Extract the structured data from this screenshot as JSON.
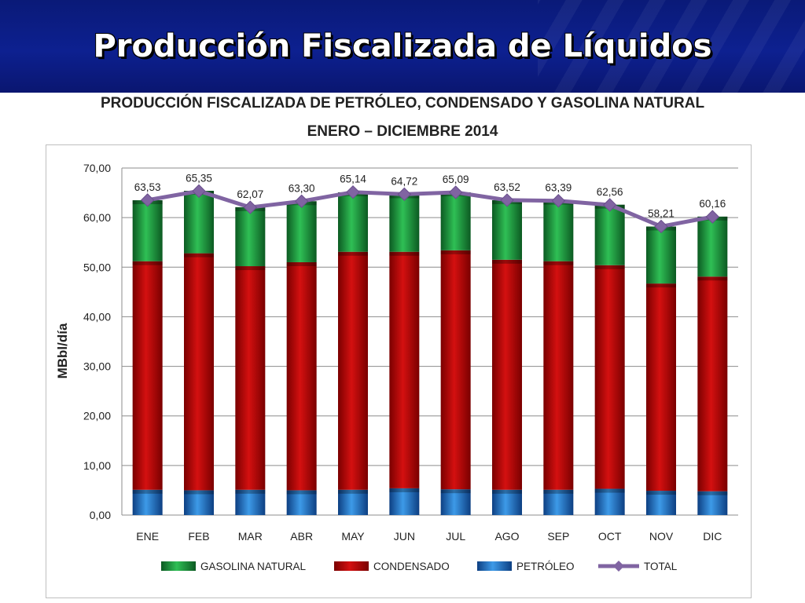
{
  "slide": {
    "title": "Producción Fiscalizada de Líquidos"
  },
  "chart_data": {
    "type": "bar",
    "stacked": true,
    "title": "PRODUCCIÓN FISCALIZADA DE PETRÓLEO, CONDENSADO Y GASOLINA NATURAL",
    "subtitle": "ENERO – DICIEMBRE 2014",
    "xlabel": "",
    "ylabel": "MBbl/día",
    "ylim": [
      0,
      70
    ],
    "yticks": [
      "0,00",
      "10,00",
      "20,00",
      "30,00",
      "40,00",
      "50,00",
      "60,00",
      "70,00"
    ],
    "grid": true,
    "legend_position": "bottom",
    "categories": [
      "ENE",
      "FEB",
      "MAR",
      "ABR",
      "MAY",
      "JUN",
      "JUL",
      "AGO",
      "SEP",
      "OCT",
      "NOV",
      "DIC"
    ],
    "series": [
      {
        "name": "PETRÓLEO",
        "kind": "bar",
        "color": "#1f6fc5",
        "values": [
          5.1,
          5.0,
          5.1,
          5.0,
          5.1,
          5.4,
          5.2,
          5.1,
          5.1,
          5.3,
          4.9,
          4.8
        ]
      },
      {
        "name": "CONDENSADO",
        "kind": "bar",
        "color": "#c40000",
        "values": [
          46.1,
          47.8,
          45.1,
          46.0,
          48.0,
          47.7,
          48.2,
          46.4,
          46.1,
          45.1,
          41.8,
          43.3
        ]
      },
      {
        "name": "GASOLINA NATURAL",
        "kind": "bar",
        "color": "#1e9a3c",
        "values": [
          12.3,
          12.6,
          11.9,
          12.3,
          12.0,
          11.6,
          11.7,
          12.0,
          12.2,
          12.2,
          11.5,
          12.1
        ]
      },
      {
        "name": "TOTAL",
        "kind": "line",
        "color": "#8064a2",
        "values": [
          63.53,
          65.35,
          62.07,
          63.3,
          65.14,
          64.72,
          65.09,
          63.52,
          63.39,
          62.56,
          58.21,
          60.16
        ],
        "labels": [
          "63,53",
          "65,35",
          "62,07",
          "63,30",
          "65,14",
          "64,72",
          "65,09",
          "63,52",
          "63,39",
          "62,56",
          "58,21",
          "60,16"
        ]
      }
    ],
    "legend_order": [
      "GASOLINA NATURAL",
      "CONDENSADO",
      "PETRÓLEO",
      "TOTAL"
    ]
  }
}
